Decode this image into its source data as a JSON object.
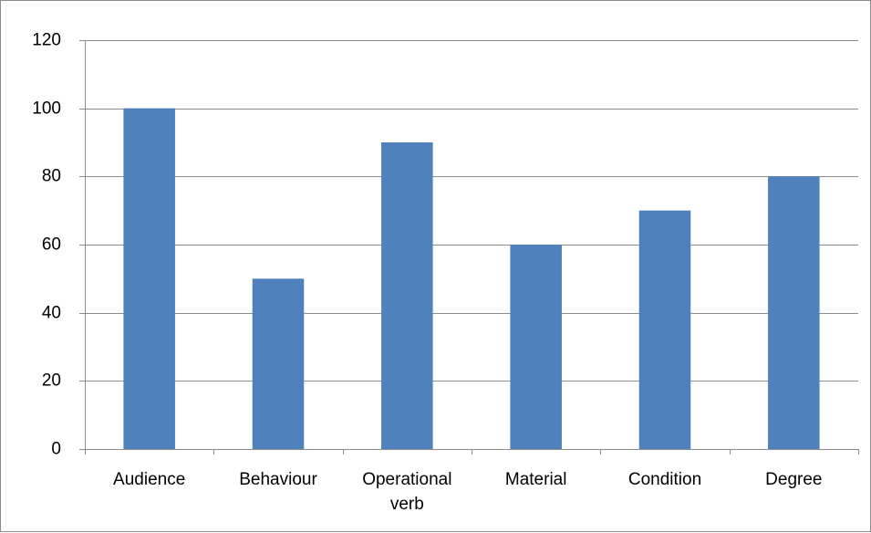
{
  "chart_data": {
    "type": "bar",
    "categories": [
      "Audience",
      "Behaviour",
      "Operational verb",
      "Material",
      "Condition",
      "Degree"
    ],
    "category_label_lines": [
      [
        "Audience"
      ],
      [
        "Behaviour"
      ],
      [
        "Operational",
        "verb"
      ],
      [
        "Material"
      ],
      [
        "Condition"
      ],
      [
        "Degree"
      ]
    ],
    "values": [
      100,
      50,
      90,
      60,
      70,
      80
    ],
    "ylim": [
      0,
      120
    ],
    "yticks": [
      0,
      20,
      40,
      60,
      80,
      100,
      120
    ],
    "grid": true,
    "legend": "none",
    "title": "",
    "xlabel": "",
    "ylabel": ""
  },
  "colors": {
    "bar": "#4f81bd",
    "grid": "#8c8c8c",
    "axis": "#8c8c8c",
    "text": "#000000"
  }
}
